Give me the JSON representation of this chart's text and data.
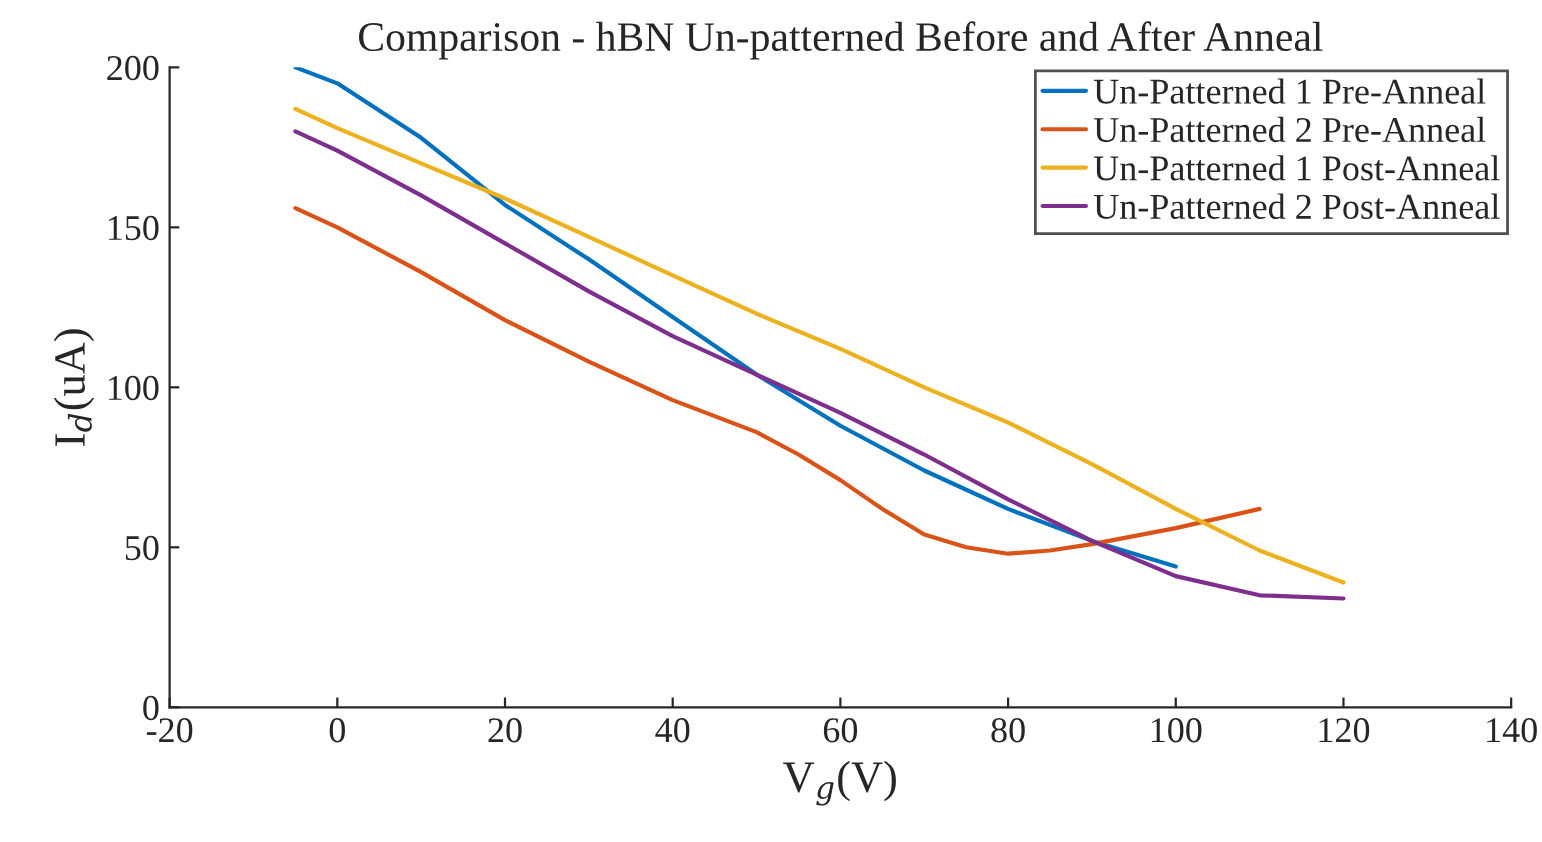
{
  "chart_data": {
    "type": "line",
    "title": "Comparison - hBN Un-patterned Before and After Anneal",
    "xlabel": "V$_{g}$(V)",
    "ylabel": "I$_{d}$(uA)",
    "xlim": [
      -20,
      140
    ],
    "xticks": [
      -20,
      0,
      20,
      40,
      60,
      80,
      100,
      120,
      140
    ],
    "ylim": [
      0,
      200
    ],
    "yticks": [
      0,
      50,
      100,
      150,
      200
    ],
    "grid": false,
    "legend": "top right",
    "line_style": "solid",
    "marker": "none",
    "series": [
      {
        "name": "Un-Patterned 1 Pre-Anneal",
        "color": "#0072bd",
        "x": [
          -5,
          0,
          10,
          20,
          30,
          40,
          50,
          60,
          70,
          80,
          90,
          100
        ],
        "values": [
          200,
          195,
          178,
          157,
          140,
          122,
          104,
          88,
          74,
          62,
          52,
          44
        ]
      },
      {
        "name": "Un-Patterned 2 Pre-Anneal",
        "color": "#d95319",
        "x": [
          -5,
          0,
          10,
          20,
          30,
          40,
          50,
          55,
          60,
          65,
          70,
          75,
          80,
          85,
          90,
          100,
          110
        ],
        "values": [
          156,
          150,
          136,
          121,
          108,
          96,
          86,
          79,
          71,
          62,
          54,
          50,
          48,
          49,
          51,
          56,
          62
        ]
      },
      {
        "name": "Un-Patterned 1 Post-Anneal",
        "color": "#edb120",
        "x": [
          -5,
          0,
          10,
          20,
          30,
          40,
          50,
          60,
          70,
          80,
          90,
          100,
          110,
          120
        ],
        "values": [
          187,
          181,
          170,
          159,
          147,
          135,
          123,
          112,
          100,
          89,
          76,
          62,
          49,
          39
        ]
      },
      {
        "name": "Un-Patterned 2 Post-Anneal",
        "color": "#7e2f8e",
        "x": [
          -5,
          0,
          10,
          20,
          30,
          40,
          50,
          60,
          70,
          80,
          90,
          100,
          110,
          120
        ],
        "values": [
          180,
          174,
          160,
          145,
          130,
          116,
          104,
          92,
          79,
          65,
          52,
          41,
          35,
          34
        ]
      }
    ]
  }
}
